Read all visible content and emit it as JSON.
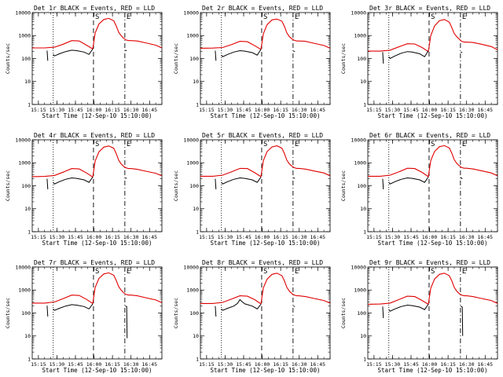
{
  "colors": {
    "events": "#000000",
    "lld": "#e00000",
    "axis": "#000000"
  },
  "chart_data": {
    "type": "line",
    "layout": "3x3 grid",
    "title_suffix": " BLACK = Events, RED = LLD",
    "xlabel": "Start Time (12-Sep-10 15:10:00)",
    "ylabel": "Counts/sec",
    "y_scale": "log",
    "ylim": [
      1,
      10000
    ],
    "y_tick_labels": [
      "1",
      "10",
      "100",
      "1000",
      "10000"
    ],
    "x_range_min": [
      0,
      105
    ],
    "x_tick_minutes": [
      5,
      20,
      35,
      50,
      65,
      80,
      95
    ],
    "x_tick_labels": [
      "15:15",
      "15:30",
      "15:45",
      "16:00",
      "16:15",
      "16:30",
      "16:45"
    ],
    "vertical_markers": [
      {
        "minute": 17.0,
        "style": "dotted",
        "label": ""
      },
      {
        "minute": 49.6,
        "style": "dashed",
        "label": "S"
      },
      {
        "minute": 75.0,
        "style": "dashdot",
        "label": "E"
      }
    ],
    "detectors": [
      {
        "title": "Det 1r",
        "lld_x": [
          0,
          10,
          18,
          25,
          32,
          38,
          44,
          49,
          51,
          54,
          58,
          62,
          66,
          68,
          70,
          72,
          74,
          76,
          78,
          80,
          85,
          92,
          100,
          105
        ],
        "lld_y": [
          290,
          290,
          310,
          420,
          600,
          580,
          380,
          260,
          1300,
          3200,
          5000,
          5600,
          4400,
          2600,
          1400,
          1000,
          760,
          640,
          600,
          600,
          580,
          480,
          380,
          290
        ],
        "events_segments": [
          {
            "x": [
              12,
              12.6
            ],
            "y": [
              220,
              80
            ]
          },
          {
            "x": [
              17,
              18,
              22,
              27,
              32,
              36,
              42,
              46,
              49
            ],
            "y": [
              150,
              130,
              160,
              200,
              230,
              220,
              190,
              150,
              260
            ]
          },
          {
            "x": [
              75.3,
              76.5
            ],
            "y": [
              230,
              220
            ]
          }
        ]
      },
      {
        "title": "Det 2r",
        "lld_x": [
          0,
          10,
          18,
          25,
          32,
          38,
          44,
          49,
          51,
          54,
          58,
          62,
          66,
          68,
          70,
          72,
          74,
          76,
          78,
          80,
          85,
          92,
          100,
          105
        ],
        "lld_y": [
          280,
          285,
          300,
          400,
          560,
          540,
          360,
          250,
          1200,
          3000,
          4800,
          5200,
          4200,
          2500,
          1300,
          900,
          720,
          620,
          580,
          580,
          560,
          460,
          370,
          280
        ],
        "events_segments": [
          {
            "x": [
              12,
              12.6
            ],
            "y": [
              220,
              80
            ]
          },
          {
            "x": [
              17,
              18,
              22,
              27,
              32,
              36,
              42,
              46,
              49
            ],
            "y": [
              140,
              120,
              150,
              190,
              220,
              210,
              180,
              140,
              250
            ]
          },
          {
            "x": [
              75.3,
              76.5
            ],
            "y": [
              210,
              200
            ]
          }
        ]
      },
      {
        "title": "Det 3r",
        "lld_x": [
          0,
          10,
          18,
          25,
          32,
          38,
          44,
          49,
          51,
          54,
          58,
          62,
          66,
          68,
          70,
          72,
          74,
          76,
          78,
          80,
          85,
          92,
          100,
          105
        ],
        "lld_y": [
          210,
          210,
          230,
          320,
          440,
          430,
          300,
          200,
          1000,
          2600,
          4400,
          5000,
          3800,
          2200,
          1200,
          900,
          700,
          560,
          520,
          520,
          500,
          420,
          330,
          240
        ],
        "events_segments": [
          {
            "x": [
              12,
              12.6
            ],
            "y": [
              190,
              60
            ]
          },
          {
            "x": [
              17,
              18,
              22,
              27,
              32,
              36,
              42,
              46,
              49
            ],
            "y": [
              120,
              100,
              130,
              170,
              200,
              190,
              160,
              120,
              220
            ]
          },
          {
            "x": [
              75.3,
              76.5
            ],
            "y": [
              190,
              180
            ]
          }
        ]
      },
      {
        "title": "Det 4r",
        "lld_x": [
          0,
          10,
          18,
          25,
          32,
          38,
          44,
          49,
          51,
          54,
          58,
          62,
          66,
          68,
          70,
          72,
          74,
          76,
          78,
          80,
          85,
          92,
          100,
          105
        ],
        "lld_y": [
          250,
          255,
          280,
          390,
          560,
          540,
          360,
          240,
          1200,
          3000,
          4800,
          5400,
          4300,
          2500,
          1300,
          900,
          700,
          600,
          560,
          560,
          520,
          430,
          350,
          270
        ],
        "events_segments": [
          {
            "x": [
              12,
              12.6
            ],
            "y": [
              200,
              70
            ]
          },
          {
            "x": [
              17,
              18,
              22,
              27,
              32,
              36,
              42,
              46,
              49
            ],
            "y": [
              140,
              120,
              150,
              190,
              220,
              210,
              180,
              140,
              240
            ]
          },
          {
            "x": [
              75.3,
              76.5
            ],
            "y": [
              220,
              210
            ]
          }
        ]
      },
      {
        "title": "Det 5r",
        "lld_x": [
          0,
          10,
          18,
          25,
          32,
          38,
          44,
          49,
          51,
          54,
          58,
          62,
          66,
          68,
          70,
          72,
          74,
          76,
          78,
          80,
          85,
          92,
          100,
          105
        ],
        "lld_y": [
          260,
          260,
          290,
          400,
          570,
          560,
          370,
          250,
          1250,
          3100,
          4900,
          5500,
          4300,
          2500,
          1300,
          900,
          720,
          610,
          570,
          570,
          530,
          440,
          360,
          270
        ],
        "events_segments": [
          {
            "x": [
              12,
              12.6
            ],
            "y": [
              200,
              70
            ]
          },
          {
            "x": [
              17,
              18,
              22,
              27,
              32,
              36,
              42,
              46,
              49
            ],
            "y": [
              140,
              120,
              150,
              190,
              220,
              210,
              180,
              140,
              240
            ]
          },
          {
            "x": [
              75.3,
              76.5
            ],
            "y": [
              220,
              210
            ]
          }
        ]
      },
      {
        "title": "Det 6r",
        "lld_x": [
          0,
          10,
          18,
          25,
          32,
          38,
          44,
          49,
          51,
          54,
          58,
          62,
          66,
          68,
          70,
          72,
          74,
          76,
          78,
          80,
          85,
          92,
          100,
          105
        ],
        "lld_y": [
          260,
          260,
          290,
          400,
          580,
          560,
          380,
          250,
          1250,
          3100,
          5000,
          5600,
          4400,
          2600,
          1350,
          950,
          740,
          620,
          580,
          580,
          540,
          450,
          360,
          270
        ],
        "events_segments": [
          {
            "x": [
              12,
              12.6
            ],
            "y": [
              200,
              70
            ]
          },
          {
            "x": [
              17,
              18,
              22,
              27,
              32,
              36,
              42,
              46,
              49
            ],
            "y": [
              140,
              120,
              150,
              190,
              220,
              210,
              180,
              140,
              240
            ]
          },
          {
            "x": [
              75.3,
              76.5
            ],
            "y": [
              230,
              200
            ]
          }
        ]
      },
      {
        "title": "Det 7r",
        "lld_x": [
          0,
          10,
          18,
          25,
          32,
          38,
          44,
          49,
          51,
          54,
          58,
          62,
          66,
          68,
          70,
          72,
          74,
          76,
          78,
          80,
          85,
          92,
          100,
          105
        ],
        "lld_y": [
          270,
          270,
          300,
          420,
          600,
          580,
          390,
          260,
          1300,
          3200,
          5000,
          5600,
          4400,
          2600,
          1400,
          1000,
          760,
          640,
          600,
          600,
          560,
          460,
          370,
          280
        ],
        "events_segments": [
          {
            "x": [
              12,
              12.6
            ],
            "y": [
              210,
              70
            ]
          },
          {
            "x": [
              17,
              18,
              22,
              27,
              32,
              36,
              42,
              46,
              49
            ],
            "y": [
              150,
              130,
              160,
              200,
              230,
              220,
              190,
              150,
              250
            ]
          },
          {
            "x": [
              75.3,
              76.5,
              76.8
            ],
            "y": [
              200,
              190,
              8
            ]
          }
        ]
      },
      {
        "title": "Det 8r",
        "lld_x": [
          0,
          10,
          18,
          25,
          32,
          38,
          44,
          49,
          51,
          54,
          58,
          62,
          66,
          68,
          70,
          72,
          74,
          76,
          78,
          80,
          85,
          92,
          100,
          105
        ],
        "lld_y": [
          260,
          260,
          290,
          400,
          560,
          540,
          380,
          250,
          1250,
          3000,
          4800,
          5400,
          4200,
          2500,
          1300,
          900,
          700,
          600,
          560,
          560,
          520,
          430,
          350,
          270
        ],
        "events_segments": [
          {
            "x": [
              12,
              12.6
            ],
            "y": [
              200,
              70
            ]
          },
          {
            "x": [
              17,
              18,
              22,
              27,
              30,
              32,
              34,
              36,
              42,
              46,
              49
            ],
            "y": [
              150,
              130,
              160,
              200,
              260,
              380,
              300,
              250,
              200,
              150,
              240
            ]
          },
          {
            "x": [
              75.3,
              76.5
            ],
            "y": [
              200,
              190
            ]
          }
        ]
      },
      {
        "title": "Det 9r",
        "lld_x": [
          0,
          10,
          18,
          25,
          32,
          38,
          44,
          49,
          51,
          54,
          58,
          62,
          66,
          68,
          70,
          72,
          74,
          76,
          78,
          80,
          85,
          92,
          100,
          105
        ],
        "lld_y": [
          240,
          245,
          270,
          380,
          540,
          520,
          350,
          240,
          1200,
          3000,
          4800,
          5400,
          4200,
          2500,
          1300,
          900,
          700,
          600,
          560,
          560,
          520,
          430,
          350,
          260
        ],
        "events_segments": [
          {
            "x": [
              12,
              12.6
            ],
            "y": [
              190,
              60
            ]
          },
          {
            "x": [
              17,
              18,
              22,
              27,
              32,
              36,
              42,
              46,
              49
            ],
            "y": [
              140,
              120,
              150,
              190,
              220,
              210,
              180,
              140,
              240
            ]
          },
          {
            "x": [
              75.3,
              76.5,
              76.8
            ],
            "y": [
              200,
              180,
              10
            ]
          }
        ]
      }
    ]
  }
}
